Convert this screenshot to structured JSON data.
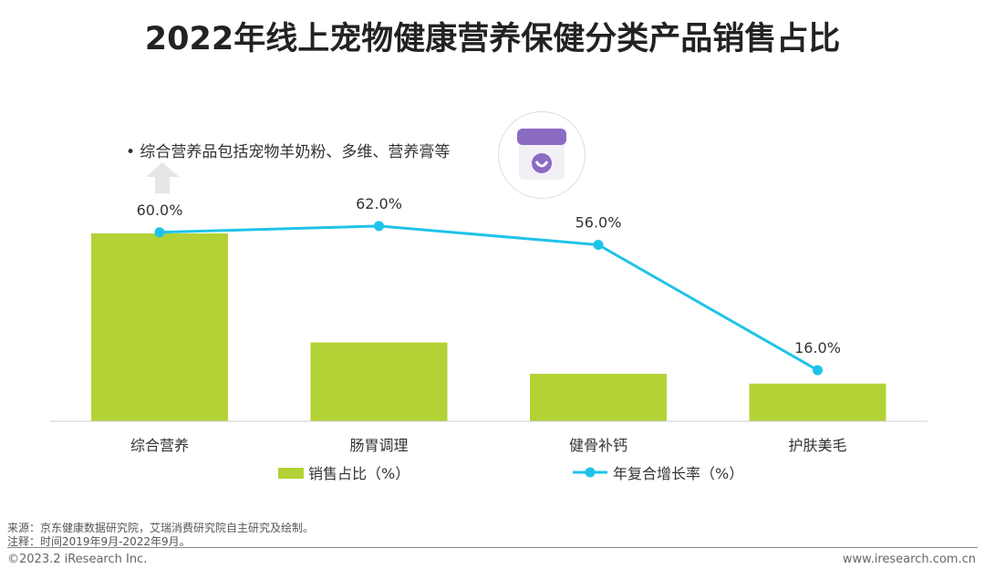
{
  "title": "2022年线上宠物健康营养保健分类产品销售占比",
  "note": "•  综合营养品包括宠物羊奶粉、多维、营养膏等",
  "chart_data": {
    "type": "bar+line",
    "categories": [
      "综合营养",
      "肠胃调理",
      "健骨补钙",
      "护肤美毛"
    ],
    "series": [
      {
        "name": "销售占比（%）",
        "type": "bar",
        "color": "#b2d235",
        "values": [
          53.4,
          22.4,
          13.5,
          10.7
        ]
      },
      {
        "name": "年复合增长率（%）",
        "type": "line",
        "color": "#1fc3ea",
        "values": [
          60.0,
          62.0,
          56.0,
          16.0
        ],
        "labels": [
          "60.0%",
          "62.0%",
          "56.0%",
          "16.0%"
        ]
      }
    ],
    "legend": "bottom",
    "grid": false
  },
  "footer": {
    "source": "来源：京东健康数据研究院，艾瑞消费研究院自主研究及绘制。",
    "remark": "注释：时间2019年9月-2022年9月。",
    "copyright": "©2023.2 iResearch Inc.",
    "website": "www.iresearch.com.cn"
  }
}
